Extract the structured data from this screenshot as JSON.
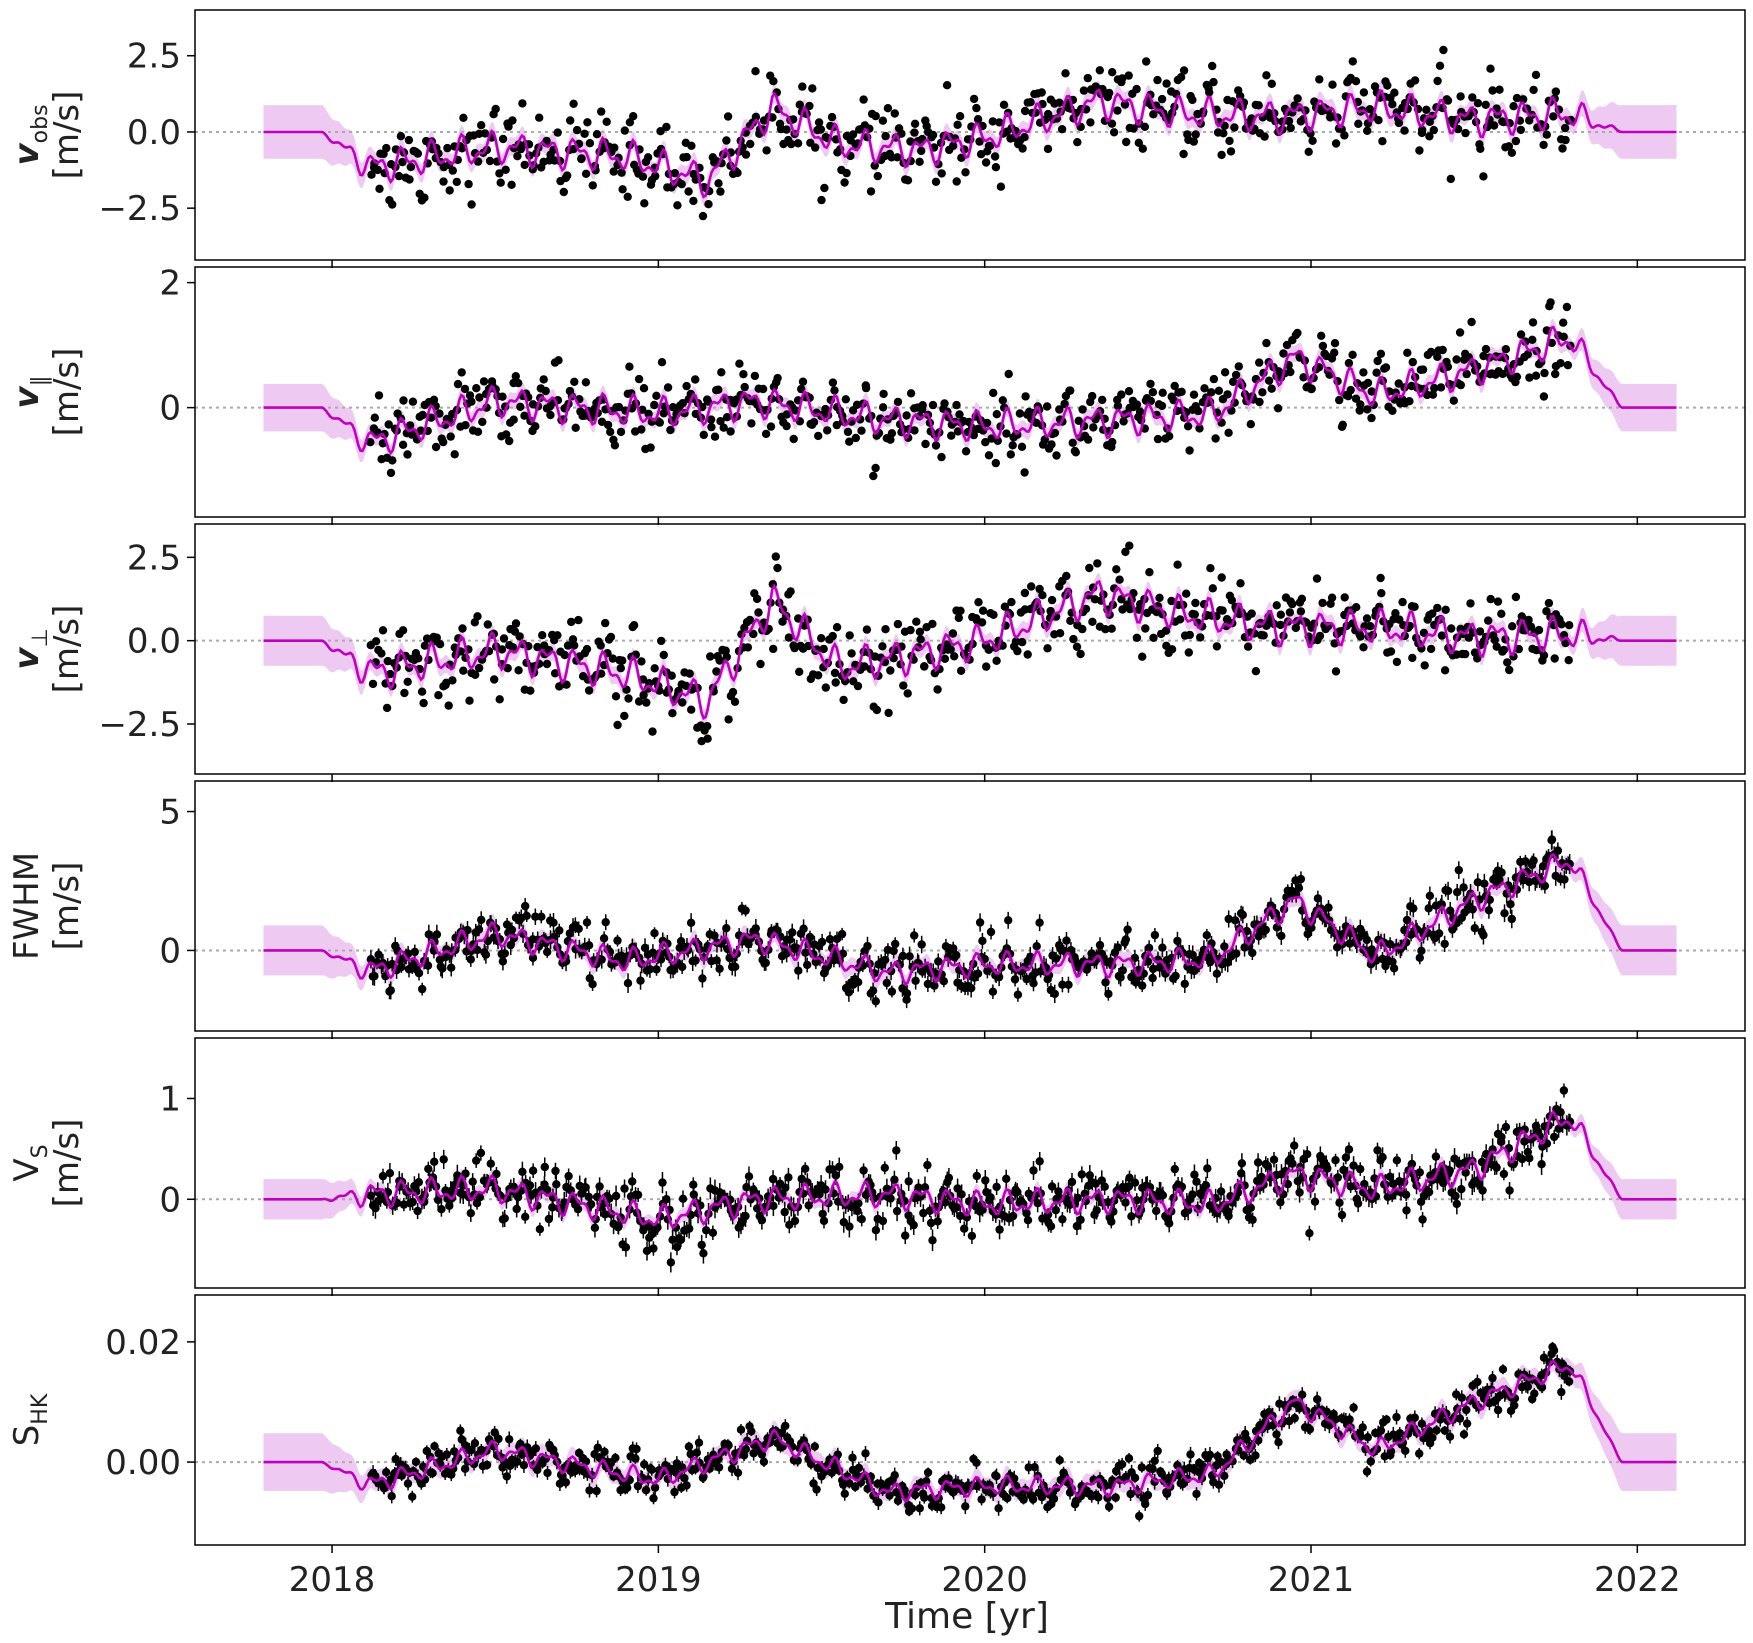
{
  "figure": {
    "x_axis_label": "Time [yr]",
    "x_ticks": [
      2018,
      2019,
      2020,
      2021,
      2022
    ],
    "colors": {
      "model": "#c000c0",
      "band": "#e8b8ee",
      "points": "#000000",
      "zero_line": "#aaaaaa",
      "axes": "#000000"
    }
  },
  "chart_data": [
    {
      "type": "scatter",
      "panel": "vobs",
      "ylabel_symbol": "v",
      "ylabel_sub": "obs",
      "ylabel_unit": "[m/s]",
      "xlim": [
        2017.58,
        2022.33
      ],
      "ylim": [
        -4.2,
        4.0
      ],
      "yticks": [
        "2.5",
        "0.0",
        "−2.5"
      ],
      "ytick_values": [
        2.5,
        0.0,
        -2.5
      ],
      "band_half_width": 0.88,
      "envelope_trend": [
        [
          2018.1,
          -1.2
        ],
        [
          2018.5,
          -0.5
        ],
        [
          2018.9,
          -0.8
        ],
        [
          2019.15,
          -1.6
        ],
        [
          2019.35,
          0.8
        ],
        [
          2019.55,
          -0.4
        ],
        [
          2019.8,
          -0.6
        ],
        [
          2020.0,
          -0.2
        ],
        [
          2020.35,
          1.0
        ],
        [
          2020.6,
          0.6
        ],
        [
          2020.9,
          0.5
        ],
        [
          2021.2,
          0.8
        ],
        [
          2021.5,
          0.4
        ],
        [
          2021.78,
          0.6
        ]
      ],
      "scatter_std": 0.75,
      "error_bars": false
    },
    {
      "type": "scatter",
      "panel": "vpar",
      "ylabel_symbol": "v",
      "ylabel_sub": "∥",
      "ylabel_unit": "[m/s]",
      "xlim": [
        2017.58,
        2022.33
      ],
      "ylim": [
        -1.75,
        2.25
      ],
      "yticks": [
        "2",
        "0"
      ],
      "ytick_values": [
        2,
        0
      ],
      "band_half_width": 0.38,
      "envelope_trend": [
        [
          2018.1,
          -0.6
        ],
        [
          2018.5,
          0.1
        ],
        [
          2019.0,
          -0.1
        ],
        [
          2019.3,
          0.1
        ],
        [
          2019.7,
          -0.2
        ],
        [
          2020.0,
          -0.3
        ],
        [
          2020.4,
          -0.2
        ],
        [
          2020.7,
          -0.1
        ],
        [
          2020.95,
          0.8
        ],
        [
          2021.2,
          0.2
        ],
        [
          2021.5,
          0.6
        ],
        [
          2021.78,
          1.1
        ]
      ],
      "scatter_std": 0.35,
      "error_bars": false
    },
    {
      "type": "scatter",
      "panel": "vperp",
      "ylabel_symbol": "v",
      "ylabel_sub": "⊥",
      "ylabel_unit": "[m/s]",
      "xlim": [
        2017.58,
        2022.33
      ],
      "ylim": [
        -4.0,
        3.5
      ],
      "yticks": [
        "2.5",
        "0.0",
        "−2.5"
      ],
      "ytick_values": [
        2.5,
        0.0,
        -2.5
      ],
      "band_half_width": 0.75,
      "envelope_trend": [
        [
          2018.1,
          -1.0
        ],
        [
          2018.5,
          -0.3
        ],
        [
          2018.9,
          -1.0
        ],
        [
          2019.15,
          -1.8
        ],
        [
          2019.35,
          1.2
        ],
        [
          2019.55,
          -0.8
        ],
        [
          2019.8,
          -0.4
        ],
        [
          2020.0,
          0.0
        ],
        [
          2020.35,
          1.4
        ],
        [
          2020.6,
          0.8
        ],
        [
          2020.9,
          0.4
        ],
        [
          2021.2,
          0.4
        ],
        [
          2021.5,
          0.1
        ],
        [
          2021.78,
          0.2
        ]
      ],
      "scatter_std": 0.75,
      "error_bars": false
    },
    {
      "type": "scatter",
      "panel": "fwhm",
      "ylabel_symbol": "FWHM",
      "ylabel_sub": "",
      "ylabel_unit": "[m/s]",
      "xlim": [
        2017.58,
        2022.33
      ],
      "ylim": [
        -2.9,
        6.1
      ],
      "yticks": [
        "5",
        "0"
      ],
      "ytick_values": [
        5,
        0
      ],
      "band_half_width": 0.9,
      "envelope_trend": [
        [
          2018.1,
          -0.8
        ],
        [
          2018.5,
          0.6
        ],
        [
          2018.9,
          -0.4
        ],
        [
          2019.3,
          0.4
        ],
        [
          2019.7,
          -0.8
        ],
        [
          2020.0,
          -0.5
        ],
        [
          2020.4,
          -0.5
        ],
        [
          2020.7,
          -0.3
        ],
        [
          2020.95,
          1.8
        ],
        [
          2021.2,
          -0.2
        ],
        [
          2021.5,
          1.8
        ],
        [
          2021.78,
          3.2
        ]
      ],
      "scatter_std": 0.6,
      "error_bars": true
    },
    {
      "type": "scatter",
      "panel": "vs",
      "ylabel_symbol": "V",
      "ylabel_sub": "S",
      "ylabel_unit": "[m/s]",
      "xlim": [
        2017.58,
        2022.33
      ],
      "ylim": [
        -0.88,
        1.6
      ],
      "yticks": [
        "1",
        "0"
      ],
      "ytick_values": [
        1,
        0
      ],
      "band_half_width": 0.2,
      "envelope_trend": [
        [
          2018.1,
          0.05
        ],
        [
          2018.5,
          0.1
        ],
        [
          2019.0,
          -0.2
        ],
        [
          2019.3,
          0.0
        ],
        [
          2019.7,
          0.05
        ],
        [
          2020.0,
          -0.05
        ],
        [
          2020.4,
          0.0
        ],
        [
          2020.7,
          -0.05
        ],
        [
          2020.95,
          0.25
        ],
        [
          2021.2,
          0.1
        ],
        [
          2021.5,
          0.3
        ],
        [
          2021.78,
          0.8
        ]
      ],
      "scatter_std": 0.18,
      "error_bars": true
    },
    {
      "type": "scatter",
      "panel": "shk",
      "ylabel_symbol": "S",
      "ylabel_sub": "HK",
      "ylabel_unit": "",
      "xlim": [
        2017.58,
        2022.33
      ],
      "ylim": [
        -0.0138,
        0.0278
      ],
      "yticks": [
        "0.02",
        "0.00"
      ],
      "ytick_values": [
        0.02,
        0.0
      ],
      "band_half_width": 0.0048,
      "envelope_trend": [
        [
          2018.1,
          -0.004
        ],
        [
          2018.5,
          0.002
        ],
        [
          2019.0,
          -0.003
        ],
        [
          2019.35,
          0.004
        ],
        [
          2019.7,
          -0.005
        ],
        [
          2020.0,
          -0.004
        ],
        [
          2020.4,
          -0.004
        ],
        [
          2020.7,
          -0.002
        ],
        [
          2020.95,
          0.01
        ],
        [
          2021.2,
          0.002
        ],
        [
          2021.5,
          0.01
        ],
        [
          2021.78,
          0.016
        ]
      ],
      "scatter_std": 0.0022,
      "error_bars": true
    }
  ]
}
